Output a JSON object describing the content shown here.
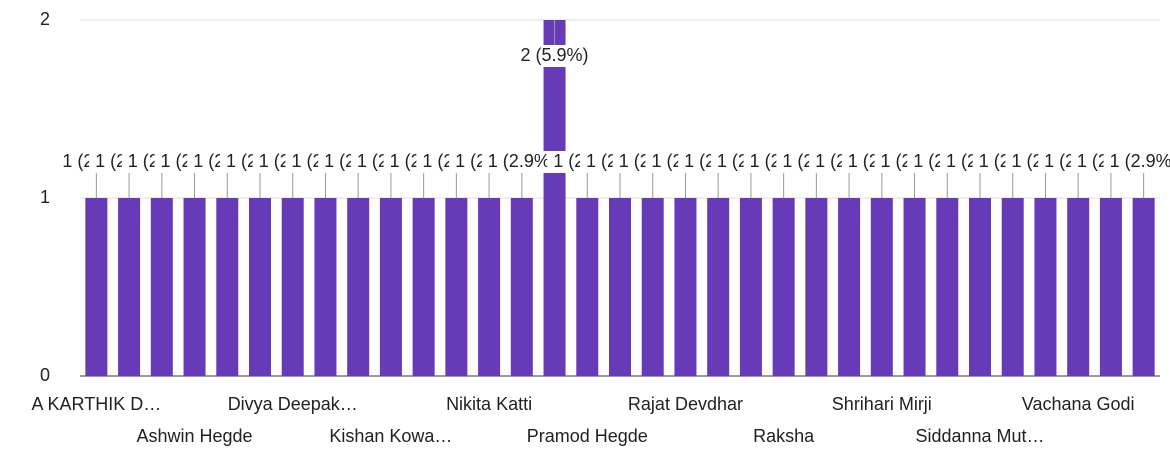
{
  "chart_data": {
    "type": "bar",
    "categories": [
      "A KARTHIK D…",
      null,
      null,
      "Ashwin Hegde",
      null,
      null,
      "Divya Deepak…",
      null,
      null,
      "Kishan Kowa…",
      null,
      null,
      "Nikita Katti",
      null,
      null,
      "Pramod Hegde",
      null,
      null,
      "Rajat Devdhar",
      null,
      null,
      "Raksha",
      null,
      null,
      "Shrihari Mirji",
      null,
      null,
      "Siddanna Mut…",
      null,
      null,
      "Vachana Godi",
      null,
      null
    ],
    "values": [
      1,
      1,
      1,
      1,
      1,
      1,
      1,
      1,
      1,
      1,
      1,
      1,
      1,
      1,
      2,
      1,
      1,
      1,
      1,
      1,
      1,
      1,
      1,
      1,
      1,
      1,
      1,
      1,
      1,
      1,
      1,
      1,
      1
    ],
    "value_labels": [
      "1 (2.9%)",
      "1 (2.9%)",
      "1 (2.9%)",
      "1 (2.9%)",
      "1 (2.9%)",
      "1 (2.9%)",
      "1 (2.9%)",
      "1 (2.9%)",
      "1 (2.9%)",
      "1 (2.9%)",
      "1 (2.9%)",
      "1 (2.9%)",
      "1 (2.9%)",
      "1 (2.9%)",
      "2 (5.9%)",
      "1 (2.9%)",
      "1 (2.9%)",
      "1 (2.9%)",
      "1 (2.9%)",
      "1 (2.9%)",
      "1 (2.9%)",
      "1 (2.9%)",
      "1 (2.9%)",
      "1 (2.9%)",
      "1 (2.9%)",
      "1 (2.9%)",
      "1 (2.9%)",
      "1 (2.9%)",
      "1 (2.9%)",
      "1 (2.9%)",
      "1 (2.9%)",
      "1 (2.9%)",
      "1 (2.9%)"
    ],
    "color": "#673ab7",
    "ylim": [
      0,
      2
    ],
    "yticks": [
      0,
      1,
      2
    ],
    "grid": true
  }
}
